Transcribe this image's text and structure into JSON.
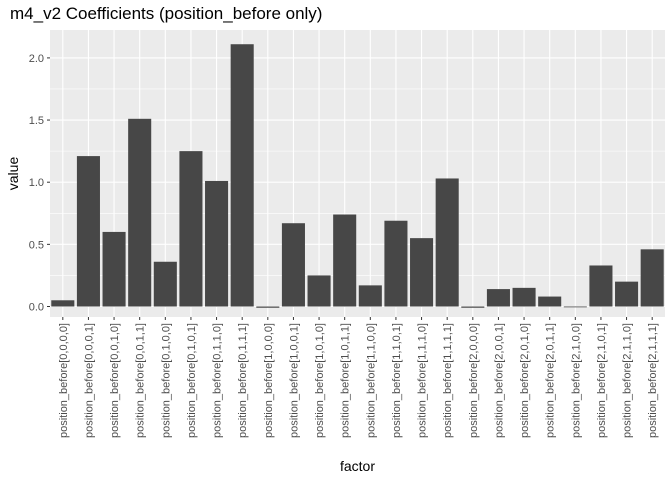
{
  "chart_data": {
    "type": "bar",
    "title": "m4_v2 Coefficients (position_before only)",
    "xlabel": "factor",
    "ylabel": "value",
    "ylim": [
      -0.05,
      2.2
    ],
    "yticks": [
      "0.0",
      "0.5",
      "1.0",
      "1.5",
      "2.0"
    ],
    "ytick_values": [
      0.0,
      0.5,
      1.0,
      1.5,
      2.0
    ],
    "grid": true,
    "bar_color": "#474747",
    "panel_color": "#ebebeb",
    "categories": [
      "position_before[0,0,0,0]",
      "position_before[0,0,0,1]",
      "position_before[0,0,1,0]",
      "position_before[0,0,1,1]",
      "position_before[0,1,0,0]",
      "position_before[0,1,0,1]",
      "position_before[0,1,1,0]",
      "position_before[0,1,1,1]",
      "position_before[1,0,0,0]",
      "position_before[1,0,0,1]",
      "position_before[1,0,1,0]",
      "position_before[1,0,1,1]",
      "position_before[1,1,0,0]",
      "position_before[1,1,0,1]",
      "position_before[1,1,1,0]",
      "position_before[1,1,1,1]",
      "position_before[2,0,0,0]",
      "position_before[2,0,0,1]",
      "position_before[2,0,1,0]",
      "position_before[2,0,1,1]",
      "position_before[2,1,0,0]",
      "position_before[2,1,0,1]",
      "position_before[2,1,1,0]",
      "position_before[2,1,1,1]"
    ],
    "values": [
      0.05,
      1.21,
      0.6,
      1.51,
      0.36,
      1.25,
      1.01,
      2.11,
      -0.01,
      0.67,
      0.25,
      0.74,
      0.17,
      0.69,
      0.55,
      1.03,
      -0.01,
      0.14,
      0.15,
      0.08,
      0.0,
      0.33,
      0.2,
      0.46
    ]
  }
}
